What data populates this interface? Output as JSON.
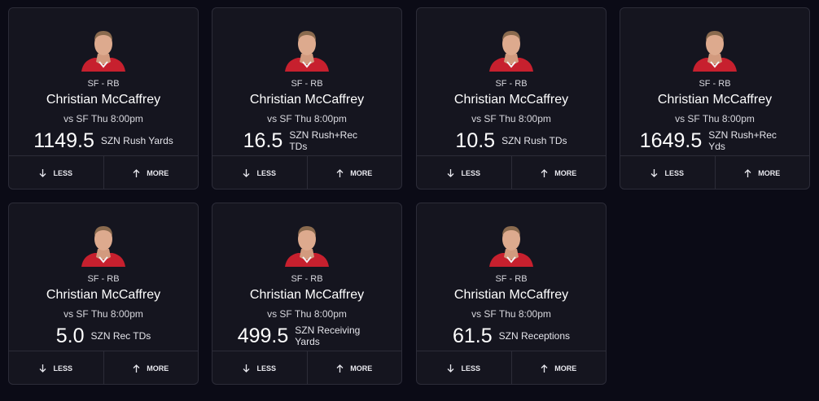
{
  "cards": [
    {
      "position": "SF - RB",
      "name": "Christian McCaffrey",
      "game": "vs SF Thu 8:00pm",
      "line": "1149.5",
      "stat": "SZN Rush Yards",
      "less": "LESS",
      "more": "MORE"
    },
    {
      "position": "SF - RB",
      "name": "Christian McCaffrey",
      "game": "vs SF Thu 8:00pm",
      "line": "16.5",
      "stat": "SZN Rush+Rec TDs",
      "less": "LESS",
      "more": "MORE"
    },
    {
      "position": "SF - RB",
      "name": "Christian McCaffrey",
      "game": "vs SF Thu 8:00pm",
      "line": "10.5",
      "stat": "SZN Rush TDs",
      "less": "LESS",
      "more": "MORE"
    },
    {
      "position": "SF - RB",
      "name": "Christian McCaffrey",
      "game": "vs SF Thu 8:00pm",
      "line": "1649.5",
      "stat": "SZN Rush+Rec Yds",
      "less": "LESS",
      "more": "MORE"
    },
    {
      "position": "SF - RB",
      "name": "Christian McCaffrey",
      "game": "vs SF Thu 8:00pm",
      "line": "5.0",
      "stat": "SZN Rec TDs",
      "less": "LESS",
      "more": "MORE"
    },
    {
      "position": "SF - RB",
      "name": "Christian McCaffrey",
      "game": "vs SF Thu 8:00pm",
      "line": "499.5",
      "stat": "SZN Receiving Yards",
      "less": "LESS",
      "more": "MORE"
    },
    {
      "position": "SF - RB",
      "name": "Christian McCaffrey",
      "game": "vs SF Thu 8:00pm",
      "line": "61.5",
      "stat": "SZN Receptions",
      "less": "LESS",
      "more": "MORE"
    }
  ]
}
